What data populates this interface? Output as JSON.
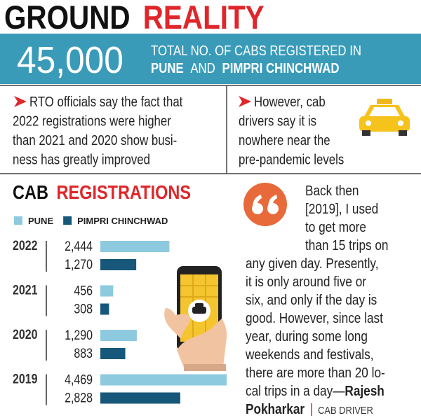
{
  "header": {
    "title_parts": [
      "GROUND",
      "REALITY"
    ]
  },
  "banner": {
    "number": "45,000",
    "line1": "TOTAL NO. OF CABS REGISTERED IN",
    "line2": [
      "PUNE",
      "AND",
      "PIMPRI CHINCHWAD"
    ]
  },
  "notes": [
    {
      "lines": [
        "RTO officials say the fact that",
        "2022 registrations were higher",
        "than 2021 and 2020 show busi-",
        "ness has greatly improved"
      ]
    },
    {
      "lines": [
        "However, cab",
        "drivers say it is",
        "nowhere near the",
        "pre-pandemic levels"
      ]
    }
  ],
  "chart_data": {
    "type": "bar",
    "orientation": "horizontal",
    "title_parts": [
      "CAB",
      "REGISTRATIONS"
    ],
    "categories": [
      "2022",
      "2021",
      "2020",
      "2019"
    ],
    "series": [
      {
        "name": "PUNE",
        "color": "#8ecadf",
        "values": [
          2444,
          456,
          1290,
          4469
        ],
        "value_labels": [
          "2,444",
          "456",
          "1,290",
          "4,469"
        ]
      },
      {
        "name": "PIMPRI CHINCHWAD",
        "color": "#17587a",
        "values": [
          1270,
          308,
          883,
          2828
        ],
        "value_labels": [
          "1,270",
          "308",
          "883",
          "2,828"
        ]
      }
    ],
    "xlim": [
      0,
      4469
    ]
  },
  "quote": {
    "lines": [
      "Back then",
      "[2019], I used",
      "to get more",
      "than 15 trips on",
      "any given day. Presently,",
      "it is only around five or",
      "six, and only if the day is",
      "good. However, since last",
      "year, during some long",
      "weekends and festivals,",
      "there are more than 20 lo-",
      "cal trips in a day—"
    ],
    "name_parts": [
      "Rajesh",
      "Pokharkar"
    ],
    "role": "CAB DRIVER"
  }
}
